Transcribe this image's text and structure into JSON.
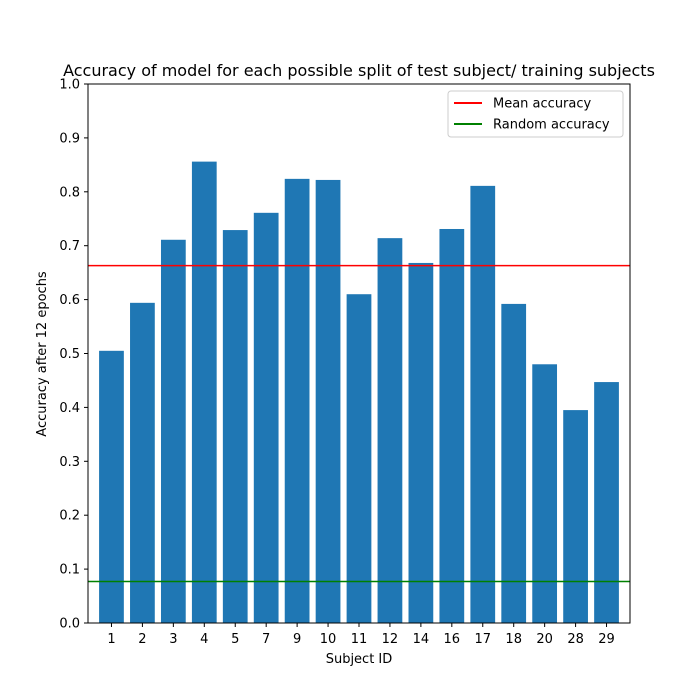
{
  "chart_data": {
    "type": "bar",
    "title": "Accuracy of model for each possible split of test subject/ training subjects",
    "xlabel": "Subject ID",
    "ylabel": "Accuracy after 12 epochs",
    "categories": [
      "1",
      "2",
      "3",
      "4",
      "5",
      "7",
      "9",
      "10",
      "11",
      "12",
      "14",
      "16",
      "17",
      "18",
      "20",
      "28",
      "29"
    ],
    "values": [
      0.505,
      0.594,
      0.711,
      0.856,
      0.729,
      0.761,
      0.824,
      0.822,
      0.61,
      0.714,
      0.668,
      0.731,
      0.811,
      0.592,
      0.48,
      0.395,
      0.447
    ],
    "ylim": [
      0,
      1.0
    ],
    "yticks": [
      "0.0",
      "0.1",
      "0.2",
      "0.3",
      "0.4",
      "0.5",
      "0.6",
      "0.7",
      "0.8",
      "0.9",
      "1.0"
    ],
    "bar_color": "#1f77b4",
    "hlines": [
      {
        "name": "Mean accuracy",
        "value": 0.663,
        "color": "#ff0000"
      },
      {
        "name": "Random accuracy",
        "value": 0.077,
        "color": "#008000"
      }
    ],
    "legend": {
      "position": "top-right",
      "entries": [
        "Mean accuracy",
        "Random accuracy"
      ]
    },
    "grid": false
  }
}
